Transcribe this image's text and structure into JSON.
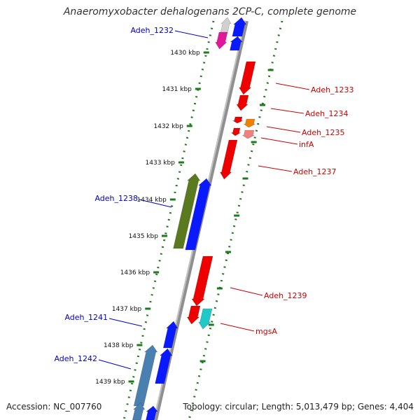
{
  "title": "Anaeromyxobacter dehalogenans 2CP-C, complete genome",
  "footer": {
    "accession": "Accession: NC_007760",
    "summary": "Topology: circular; Length: 5,013,479 bp; Genes: 4,404"
  },
  "colors": {
    "backbone": "#9a9a9a",
    "tick_mark": "#1f7a1f",
    "label_forward": "#0000cc",
    "label_reverse": "#cc0000"
  },
  "kbp_labels": [
    "1430 kbp",
    "1431 kbp",
    "1432 kbp",
    "1433 kbp",
    "1434 kbp",
    "1435 kbp",
    "1436 kbp",
    "1437 kbp",
    "1438 kbp",
    "1439 kbp"
  ],
  "gene_labels_forward": [
    "Adeh_1232",
    "Adeh_1238",
    "Adeh_1241",
    "Adeh_1242"
  ],
  "gene_labels_reverse": [
    "Adeh_1233",
    "Adeh_1234",
    "Adeh_1235",
    "infA",
    "Adeh_1237",
    "Adeh_1239",
    "mgsA"
  ]
}
